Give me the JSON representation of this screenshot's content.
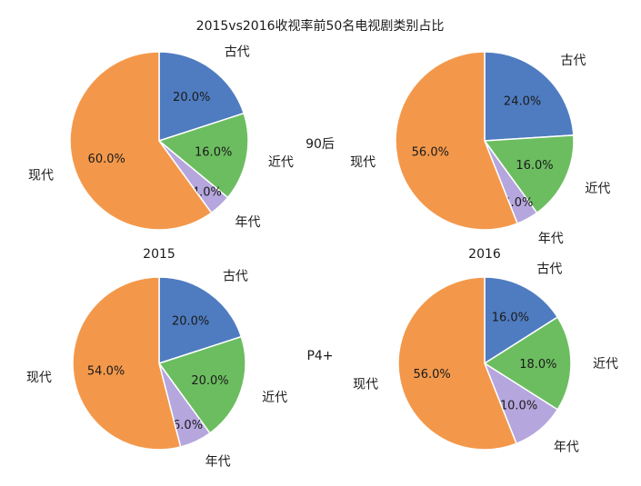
{
  "title": "2015vs2016收视率前50名电视剧类别占比",
  "row_labels": [
    "90后",
    "P4+"
  ],
  "column_labels": [
    "2015",
    "2016"
  ],
  "colors": {
    "古代": "#4f7cc0",
    "近代": "#6cbd60",
    "年代": "#b5a6dd",
    "现代": "#f3984b"
  },
  "chart_data": [
    {
      "type": "pie",
      "group": "90后",
      "year": "2015",
      "categories": [
        "古代",
        "近代",
        "年代",
        "现代"
      ],
      "values": [
        20.0,
        16.0,
        4.0,
        60.0
      ],
      "labels": [
        "20.0%",
        "16.0%",
        "4.0%",
        "60.0%"
      ]
    },
    {
      "type": "pie",
      "group": "90后",
      "year": "2016",
      "categories": [
        "古代",
        "近代",
        "年代",
        "现代"
      ],
      "values": [
        24.0,
        16.0,
        4.0,
        56.0
      ],
      "labels": [
        "24.0%",
        "16.0%",
        "4.0%",
        "56.0%"
      ]
    },
    {
      "type": "pie",
      "group": "P4+",
      "year": "2015",
      "categories": [
        "古代",
        "近代",
        "年代",
        "现代"
      ],
      "values": [
        20.0,
        20.0,
        6.0,
        54.0
      ],
      "labels": [
        "20.0%",
        "20.0%",
        "6.0%",
        "54.0%"
      ]
    },
    {
      "type": "pie",
      "group": "P4+",
      "year": "2016",
      "categories": [
        "古代",
        "近代",
        "年代",
        "现代"
      ],
      "values": [
        16.0,
        18.0,
        10.0,
        56.0
      ],
      "labels": [
        "16.0%",
        "18.0%",
        "10.0%",
        "56.0%"
      ]
    }
  ]
}
